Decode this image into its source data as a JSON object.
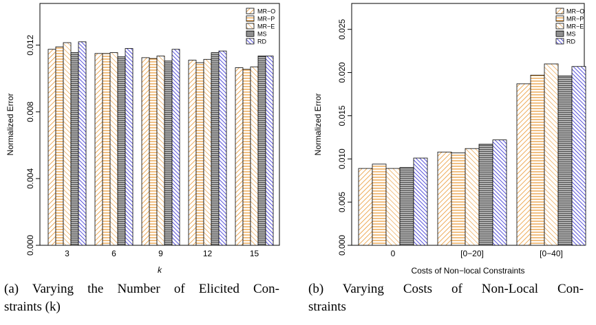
{
  "colors": {
    "MR-O": "#e8952f",
    "MR-P": "#f0b85a",
    "MR-E": "#f4c27a",
    "MS": "#6e6e6e",
    "RD": "#3a34d8"
  },
  "chart_data": [
    {
      "type": "bar",
      "title": "",
      "xlabel": "k",
      "ylabel": "Normalized Error",
      "categories": [
        "3",
        "6",
        "9",
        "12",
        "15"
      ],
      "ylim": [
        0,
        0.0145
      ],
      "yticks": [
        "0.000",
        "0.004",
        "0.008",
        "0.012"
      ],
      "ytick_values": [
        0.0,
        0.004,
        0.008,
        0.012
      ],
      "legend_position": "top-right",
      "series": [
        {
          "name": "MR−O",
          "key": "MR-O",
          "pattern": "diag-right",
          "values": [
            0.01175,
            0.0115,
            0.01125,
            0.0111,
            0.01065
          ]
        },
        {
          "name": "MR−P",
          "key": "MR-P",
          "pattern": "horizontal",
          "values": [
            0.0119,
            0.0115,
            0.0112,
            0.01095,
            0.01055
          ]
        },
        {
          "name": "MR−E",
          "key": "MR-E",
          "pattern": "diag-left",
          "values": [
            0.01215,
            0.01155,
            0.01135,
            0.01115,
            0.0107
          ]
        },
        {
          "name": "MS",
          "key": "MS",
          "pattern": "gray-horizontal",
          "values": [
            0.01155,
            0.0113,
            0.01105,
            0.01155,
            0.01135
          ]
        },
        {
          "name": "RD",
          "key": "RD",
          "pattern": "diag-left-blue",
          "values": [
            0.0122,
            0.0118,
            0.01175,
            0.01165,
            0.01135
          ]
        }
      ]
    },
    {
      "type": "bar",
      "title": "",
      "xlabel": "Costs of Non−local Constraints",
      "ylabel": "Normalized Error",
      "categories": [
        "0",
        "[0−20]",
        "[0−40]"
      ],
      "ylim": [
        0,
        0.028
      ],
      "yticks": [
        "0.000",
        "0.005",
        "0.010",
        "0.015",
        "0.020",
        "0.025"
      ],
      "ytick_values": [
        0.0,
        0.005,
        0.01,
        0.015,
        0.02,
        0.025
      ],
      "legend_position": "top-right",
      "series": [
        {
          "name": "MR−O",
          "key": "MR-O",
          "pattern": "diag-right",
          "values": [
            0.0089,
            0.0108,
            0.0187
          ]
        },
        {
          "name": "MR−P",
          "key": "MR-P",
          "pattern": "horizontal",
          "values": [
            0.0094,
            0.0107,
            0.0197
          ]
        },
        {
          "name": "MR−E",
          "key": "MR-E",
          "pattern": "diag-left",
          "values": [
            0.0089,
            0.0112,
            0.021
          ]
        },
        {
          "name": "MS",
          "key": "MS",
          "pattern": "gray-horizontal",
          "values": [
            0.009,
            0.0117,
            0.0196
          ]
        },
        {
          "name": "RD",
          "key": "RD",
          "pattern": "diag-left-blue",
          "values": [
            0.0101,
            0.0122,
            0.0207
          ]
        }
      ]
    }
  ],
  "captions": {
    "a_line1": "(a)  Varying  the  Number  of  Elicited  Con-",
    "a_line2": "straints (k)",
    "b_line1": "(b)  Varying  Costs  of  Non-Local  Con-",
    "b_line2": "straints"
  }
}
